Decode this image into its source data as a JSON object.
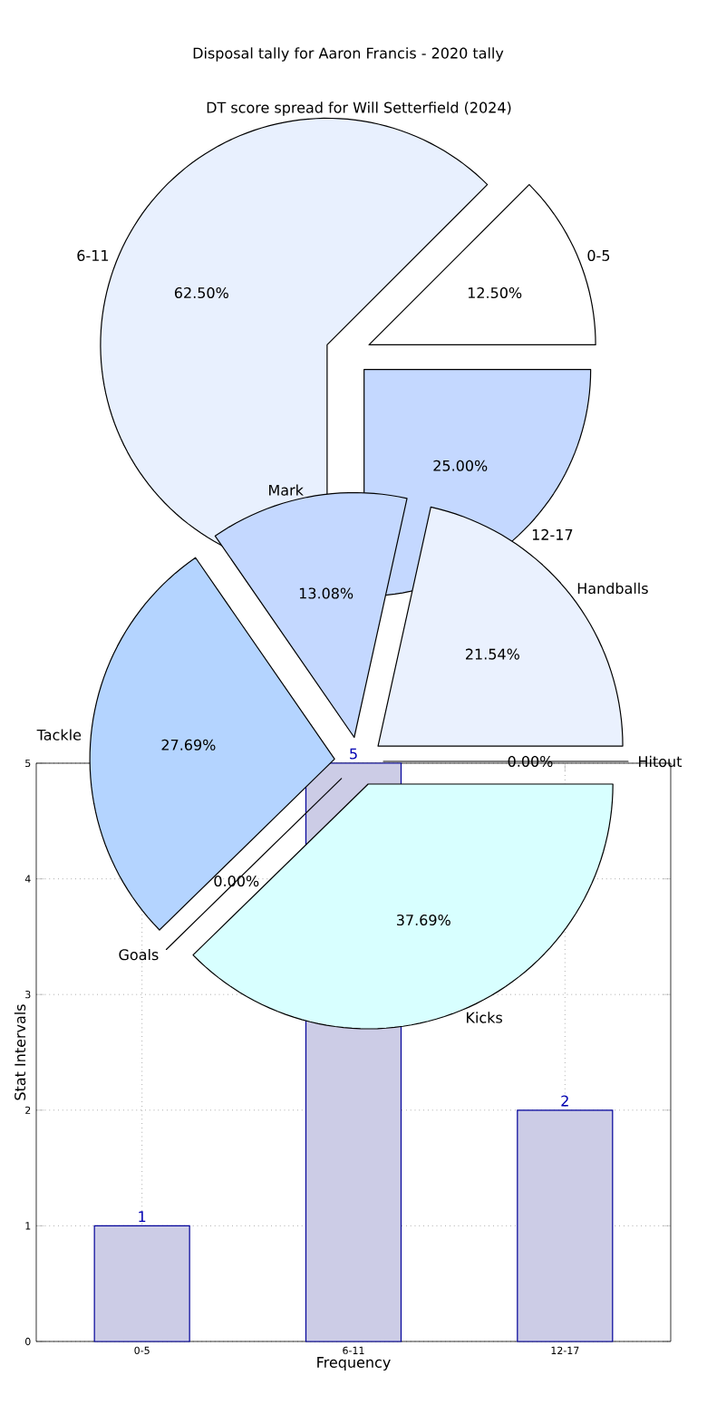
{
  "chart_data": [
    {
      "type": "pie",
      "title": "Disposal tally for Aaron Francis - 2020 tally",
      "categories": [
        "0-5",
        "6-11",
        "12-17"
      ],
      "values": [
        12.5,
        62.5,
        25.0
      ],
      "value_labels": [
        "12.50%",
        "62.50%",
        "25.00%"
      ],
      "colors": [
        "#ffffff",
        "#e8f0fe",
        "#c4d8ff"
      ]
    },
    {
      "type": "pie",
      "title": "DT score spread for Will Setterfield (2024)",
      "categories": [
        "Handballs",
        "Mark",
        "Tackle",
        "Goals",
        "Kicks",
        "Hitout"
      ],
      "values": [
        21.54,
        13.08,
        27.69,
        0.0,
        37.69,
        0.0
      ],
      "value_labels": [
        "21.54%",
        "13.08%",
        "27.69%",
        "0.00%",
        "37.69%",
        "0.00%"
      ],
      "colors": [
        "#eaf1fe",
        "#c4d8ff",
        "#b4d4ff",
        "#ffffff",
        "#d8ffff",
        "#ffffff"
      ]
    },
    {
      "type": "bar",
      "categories": [
        "0-5",
        "6-11",
        "12-17"
      ],
      "values": [
        1,
        5,
        2
      ],
      "color": "#cccce6",
      "xlabel": "Frequency",
      "ylabel": "Stat Intervals",
      "ylim": [
        0,
        5
      ],
      "yticks": [
        0,
        1,
        2,
        3,
        4,
        5
      ],
      "grid": true,
      "data_labels": true
    }
  ]
}
